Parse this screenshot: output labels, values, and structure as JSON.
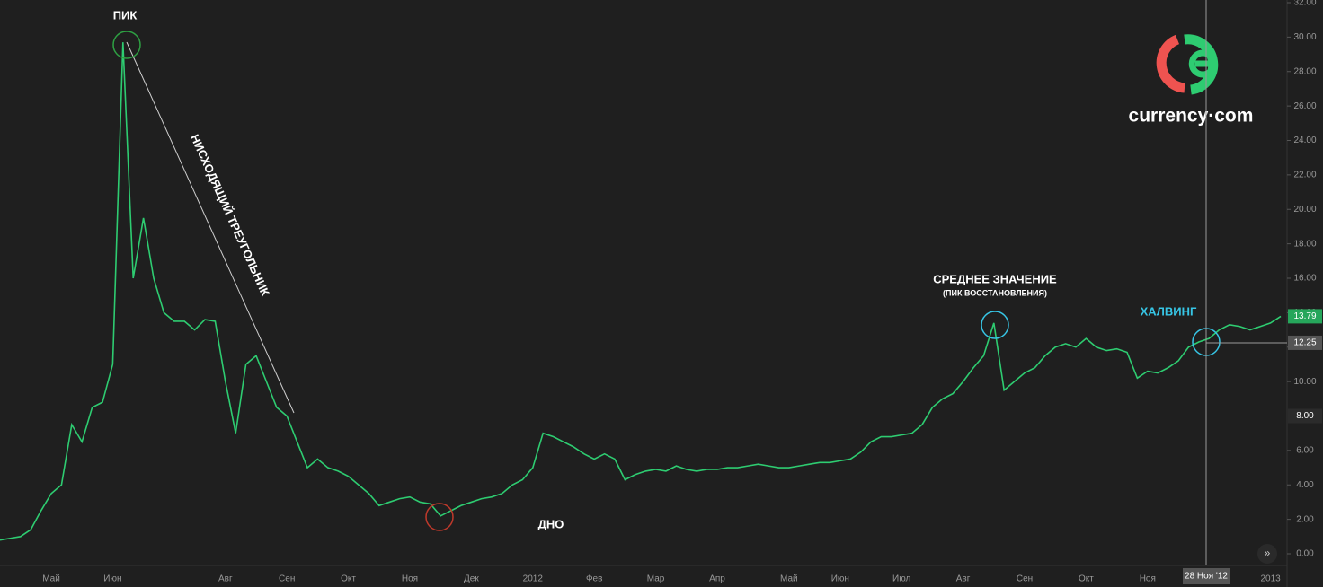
{
  "chart_data": {
    "type": "line",
    "annotations": [
      "ПИК",
      "НИСХОДЯЩИЙ ТРЕУГОЛЬНИК",
      "ДНО",
      "СРЕДНЕЕ ЗНАЧЕНИЕ",
      "(ПИК ВОССТАНОВЛЕНИЯ)",
      "ХАЛВИНГ"
    ],
    "brand": "currency·com",
    "crosshair_label": "28 Ноя '12",
    "categories": [
      null,
      null,
      null,
      null,
      null,
      "Май",
      null,
      null,
      null,
      null,
      null,
      "Июн",
      null,
      null,
      null,
      null,
      null,
      null,
      null,
      null,
      null,
      null,
      "Авг",
      null,
      null,
      null,
      null,
      null,
      "Сен",
      null,
      null,
      null,
      null,
      null,
      "Окт",
      null,
      null,
      null,
      null,
      null,
      "Ноя",
      null,
      null,
      null,
      null,
      null,
      "Дек",
      null,
      null,
      null,
      null,
      null,
      "2012",
      null,
      null,
      null,
      null,
      null,
      "Фев",
      null,
      null,
      null,
      null,
      null,
      "Мар",
      null,
      null,
      null,
      null,
      null,
      "Апр",
      null,
      null,
      null,
      null,
      null,
      null,
      "Май",
      null,
      null,
      null,
      null,
      "Июн",
      null,
      null,
      null,
      null,
      null,
      "Июл",
      null,
      null,
      null,
      null,
      null,
      "Авг",
      null,
      null,
      null,
      null,
      null,
      "Сен",
      null,
      null,
      null,
      null,
      null,
      "Окт",
      null,
      null,
      null,
      null,
      null,
      "Ноя",
      null,
      null,
      null,
      null,
      null,
      null,
      null,
      null,
      null,
      null,
      null,
      "2013",
      null
    ],
    "series": [
      {
        "color": "#2ecc71",
        "values": [
          0.8,
          0.9,
          1.0,
          1.4,
          2.5,
          3.5,
          4.0,
          7.5,
          6.5,
          8.5,
          8.8,
          11,
          29.7,
          16,
          19.5,
          16,
          14,
          13.5,
          13.5,
          13.0,
          13.6,
          13.5,
          10,
          7,
          11,
          11.5,
          10,
          8.5,
          8,
          6.5,
          5,
          5.5,
          5.0,
          4.8,
          4.5,
          4.0,
          3.5,
          2.8,
          3.0,
          3.2,
          3.3,
          3.0,
          2.9,
          2.2,
          2.5,
          2.8,
          3.0,
          3.2,
          3.3,
          3.5,
          4.0,
          4.3,
          5.0,
          7.0,
          6.8,
          6.5,
          6.2,
          5.8,
          5.5,
          5.8,
          5.5,
          4.3,
          4.6,
          4.8,
          4.9,
          4.8,
          5.1,
          4.9,
          4.8,
          4.9,
          4.9,
          5.0,
          5.0,
          5.1,
          5.2,
          5.1,
          5.0,
          5.0,
          5.1,
          5.2,
          5.3,
          5.3,
          5.4,
          5.5,
          5.9,
          6.5,
          6.8,
          6.8,
          6.9,
          7.0,
          7.5,
          8.5,
          9.0,
          9.3,
          10,
          10.8,
          11.5,
          13.4,
          9.5,
          10.0,
          10.5,
          10.8,
          11.5,
          12.0,
          12.2,
          12.0,
          12.5,
          12.0,
          11.8,
          11.9,
          11.7,
          10.2,
          10.6,
          10.5,
          10.8,
          11.2,
          12.0,
          12.3,
          12.5,
          13.0,
          13.3,
          13.2,
          13.0,
          13.2,
          13.4,
          13.79
        ]
      }
    ],
    "last_label": {
      "value": 13.79,
      "label": "13.79"
    },
    "hlines": [
      {
        "value": 8,
        "label": "8.00"
      },
      {
        "value": 12.25,
        "label": "12.25"
      }
    ],
    "ylim": [
      0,
      32
    ],
    "yticks": [
      {
        "value": 0,
        "label": "0.00"
      },
      {
        "value": 2,
        "label": "2.00"
      },
      {
        "value": 4,
        "label": "4.00"
      },
      {
        "value": 6,
        "label": "6.00"
      },
      {
        "value": 8,
        "label": "8.00"
      },
      {
        "value": 10,
        "label": "10.00"
      },
      {
        "value": 12,
        "label": "12.00"
      },
      {
        "value": 14,
        "label": "14.00"
      },
      {
        "value": 16,
        "label": "16.00"
      },
      {
        "value": 18,
        "label": "18.00"
      },
      {
        "value": 20,
        "label": "20.00"
      },
      {
        "value": 22,
        "label": "22.00"
      },
      {
        "value": 24,
        "label": "24.00"
      },
      {
        "value": 26,
        "label": "26.00"
      },
      {
        "value": 28,
        "label": "28.00"
      },
      {
        "value": 30,
        "label": "30.00"
      },
      {
        "value": 32,
        "label": "32.00"
      }
    ]
  }
}
